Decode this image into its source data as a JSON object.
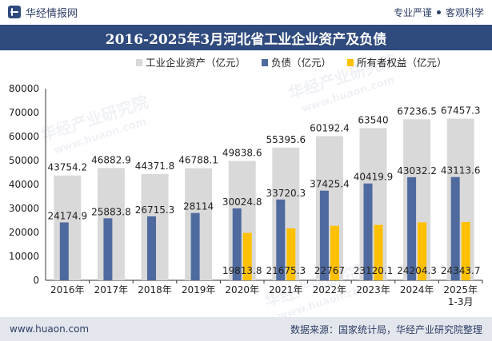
{
  "header": {
    "site_name": "华经情报网",
    "tag_1": "专业严谨",
    "tag_2": "客观科学"
  },
  "footer": {
    "url": "www.huaon.com",
    "source": "数据来源：国家统计局，华经产业研究院整理"
  },
  "watermark": {
    "text_cn": "华经产业研究院",
    "text_url": "www.huaon.com"
  },
  "colors": {
    "assets": "#d9d9d9",
    "liabilities": "#4f6a9e",
    "equity": "#ffc000",
    "brand": "#2f4a7d"
  },
  "chart_data": {
    "type": "bar",
    "title": "2016-2025年3月河北省工业企业资产及负债",
    "categories": [
      "2016年",
      "2017年",
      "2018年",
      "2019年",
      "2020年",
      "2021年",
      "2022年",
      "2023年",
      "2024年",
      "2025年 1-3月"
    ],
    "series": [
      {
        "name": "工业企业资产（亿元）",
        "values": [
          43754.2,
          46882.9,
          44371.8,
          46788.1,
          49838.6,
          55395.6,
          60192.4,
          63540,
          67236.5,
          67457.3
        ]
      },
      {
        "name": "负债（亿元）",
        "values": [
          24174.9,
          25883.8,
          26715.3,
          28114,
          30024.8,
          33720.3,
          37425.4,
          40419.9,
          43032.2,
          43113.6
        ]
      },
      {
        "name": "所有者权益（亿元）",
        "values": [
          null,
          null,
          null,
          null,
          19813.8,
          21675.3,
          22767,
          23120.1,
          24204.3,
          24343.7
        ]
      }
    ],
    "ylim": [
      0,
      80000
    ],
    "yticks": [
      0,
      10000,
      20000,
      30000,
      40000,
      50000,
      60000,
      70000,
      80000
    ],
    "legend_position": "top",
    "grid": false
  }
}
